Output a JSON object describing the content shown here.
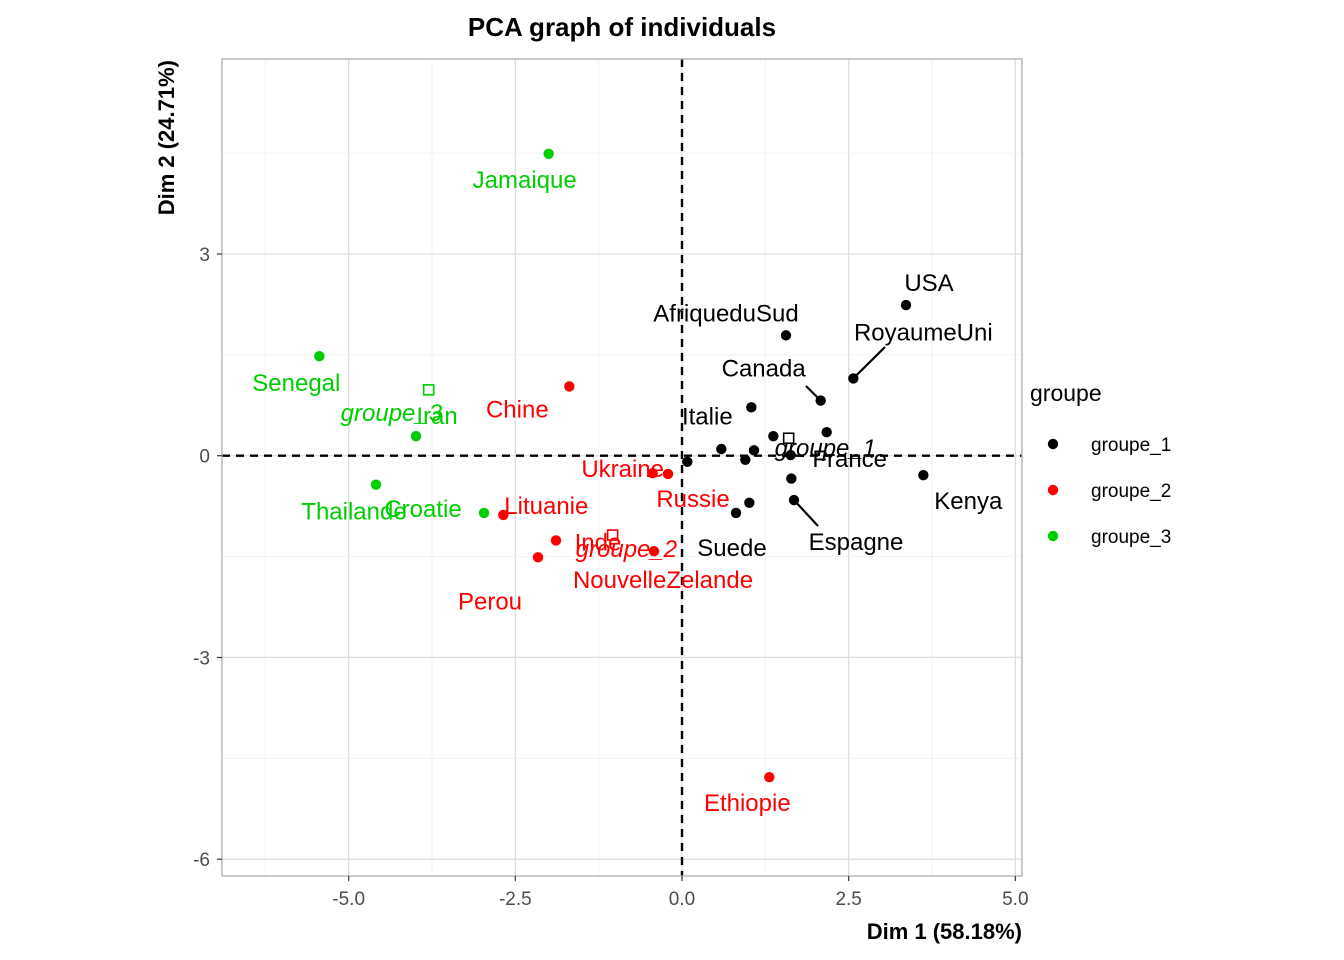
{
  "chart_data": {
    "type": "scatter",
    "title": "PCA graph of individuals",
    "xlabel": "Dim 1 (58.18%)",
    "ylabel": "Dim 2 (24.71%)",
    "xlim": [
      -6.9,
      5.1
    ],
    "ylim": [
      -6.25,
      5.9
    ],
    "xticks": [
      -5.0,
      -2.5,
      0.0,
      2.5,
      5.0
    ],
    "xtick_labels": [
      "-5.0",
      "-2.5",
      "0.0",
      "2.5",
      "5.0"
    ],
    "yticks": [
      -6,
      -3,
      0,
      3
    ],
    "ytick_labels": [
      "-6",
      "-3",
      "0",
      "3"
    ],
    "grid": true,
    "reference_lines": {
      "x": 0,
      "y": 0,
      "style": "dashed"
    },
    "legend": {
      "title": "groupe",
      "position": "right",
      "entries": [
        {
          "label": "groupe_1",
          "color": "#000000"
        },
        {
          "label": "groupe_2",
          "color": "#ff0000"
        },
        {
          "label": "groupe_3",
          "color": "#00cd00"
        }
      ]
    },
    "series": [
      {
        "name": "groupe_1",
        "color": "#000000",
        "points": [
          {
            "x": 3.36,
            "y": 2.24,
            "label": "USA"
          },
          {
            "x": 1.56,
            "y": 1.79,
            "label": "AfriqueduSud"
          },
          {
            "x": 2.57,
            "y": 1.15,
            "label": "RoyaumeUni"
          },
          {
            "x": 2.08,
            "y": 0.82,
            "label": "Canada"
          },
          {
            "x": 1.04,
            "y": 0.72,
            "label": "Italie"
          },
          {
            "x": 1.37,
            "y": 0.29,
            "label": ""
          },
          {
            "x": 2.17,
            "y": 0.35,
            "label": ""
          },
          {
            "x": 0.59,
            "y": 0.1,
            "label": ""
          },
          {
            "x": 1.08,
            "y": 0.08,
            "label": ""
          },
          {
            "x": 0.95,
            "y": -0.06,
            "label": ""
          },
          {
            "x": 0.08,
            "y": -0.09,
            "label": ""
          },
          {
            "x": 1.63,
            "y": 0.01,
            "label": "France"
          },
          {
            "x": 1.64,
            "y": -0.34,
            "label": ""
          },
          {
            "x": 3.62,
            "y": -0.29,
            "label": "Kenya"
          },
          {
            "x": 1.01,
            "y": -0.7,
            "label": ""
          },
          {
            "x": 0.81,
            "y": -0.85,
            "label": "Suede"
          },
          {
            "x": 1.68,
            "y": -0.66,
            "label": "Espagne"
          }
        ]
      },
      {
        "name": "groupe_2",
        "color": "#ff0000",
        "points": [
          {
            "x": -1.69,
            "y": 1.03,
            "label": "Chine"
          },
          {
            "x": -0.44,
            "y": -0.26,
            "label": "Ukraine"
          },
          {
            "x": -0.21,
            "y": -0.27,
            "label": "Russie"
          },
          {
            "x": -2.68,
            "y": -0.88,
            "label": "Lituanie"
          },
          {
            "x": -1.89,
            "y": -1.26,
            "label": "Inde"
          },
          {
            "x": -2.16,
            "y": -1.51,
            "label": "Perou"
          },
          {
            "x": -0.42,
            "y": -1.42,
            "label": "NouvelleZelande"
          },
          {
            "x": 1.31,
            "y": -4.78,
            "label": "Ethiopie"
          }
        ]
      },
      {
        "name": "groupe_3",
        "color": "#00cd00",
        "points": [
          {
            "x": -2.0,
            "y": 4.49,
            "label": "Jamaique"
          },
          {
            "x": -5.44,
            "y": 1.48,
            "label": "Senegal"
          },
          {
            "x": -3.99,
            "y": 0.29,
            "label": "Iran"
          },
          {
            "x": -4.59,
            "y": -0.43,
            "label": "Thailande"
          },
          {
            "x": -2.97,
            "y": -0.85,
            "label": "Croatie"
          }
        ]
      }
    ],
    "centroids": [
      {
        "name": "groupe_1",
        "x": 1.6,
        "y": 0.26,
        "color": "#000000"
      },
      {
        "name": "groupe_2",
        "x": -1.04,
        "y": -1.18,
        "color": "#ff0000"
      },
      {
        "name": "groupe_3",
        "x": -3.8,
        "y": 0.98,
        "color": "#00cd00"
      }
    ]
  }
}
